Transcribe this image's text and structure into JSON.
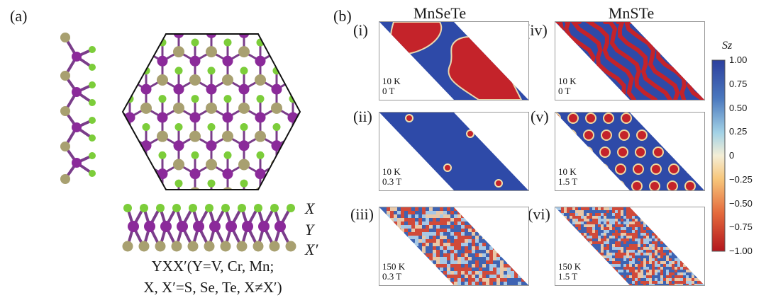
{
  "panel_a": {
    "label": "(a)",
    "layer_labels": [
      "X",
      "Y",
      "X′"
    ],
    "formula_line1": "YXX′(Y=V, Cr, Mn;",
    "formula_line2": "X, X′=S, Se, Te, X≠X′)"
  },
  "panel_b": {
    "label": "(b)",
    "col_titles": [
      "MnSeTe",
      "MnSTe"
    ],
    "subpanels": [
      {
        "tag": "(i)",
        "temp": "10 K",
        "field": "0 T",
        "texture": "domains"
      },
      {
        "tag": "(ii)",
        "temp": "10 K",
        "field": "0.3 T",
        "texture": "bubbles"
      },
      {
        "tag": "(iii)",
        "temp": "150 K",
        "field": "0.3 T",
        "texture": "noise"
      },
      {
        "tag": "(iv)",
        "temp": "10 K",
        "field": "0 T",
        "texture": "stripes"
      },
      {
        "tag": "(v)",
        "temp": "10 K",
        "field": "1.5 T",
        "texture": "lattice"
      },
      {
        "tag": "(vi)",
        "temp": "150 K",
        "field": "1.5 T",
        "texture": "fine-noise"
      }
    ],
    "colorbar": {
      "label": "Sz",
      "ticks": [
        "1.00",
        "0.75",
        "0.50",
        "0.25",
        "0",
        "−0.25",
        "−0.50",
        "−0.75",
        "−1.00"
      ],
      "range": [
        -1,
        1
      ],
      "colors": {
        "top": "#2c3f9e",
        "mid": "#f4eed6",
        "bottom": "#b3161d"
      }
    }
  },
  "colors": {
    "chalcogen": "#a8a070",
    "metal": "#8b2a9a",
    "light_chalcogen": "#7ccd3a",
    "spin_up": "#2e4aa8",
    "spin_down": "#c4232a"
  }
}
